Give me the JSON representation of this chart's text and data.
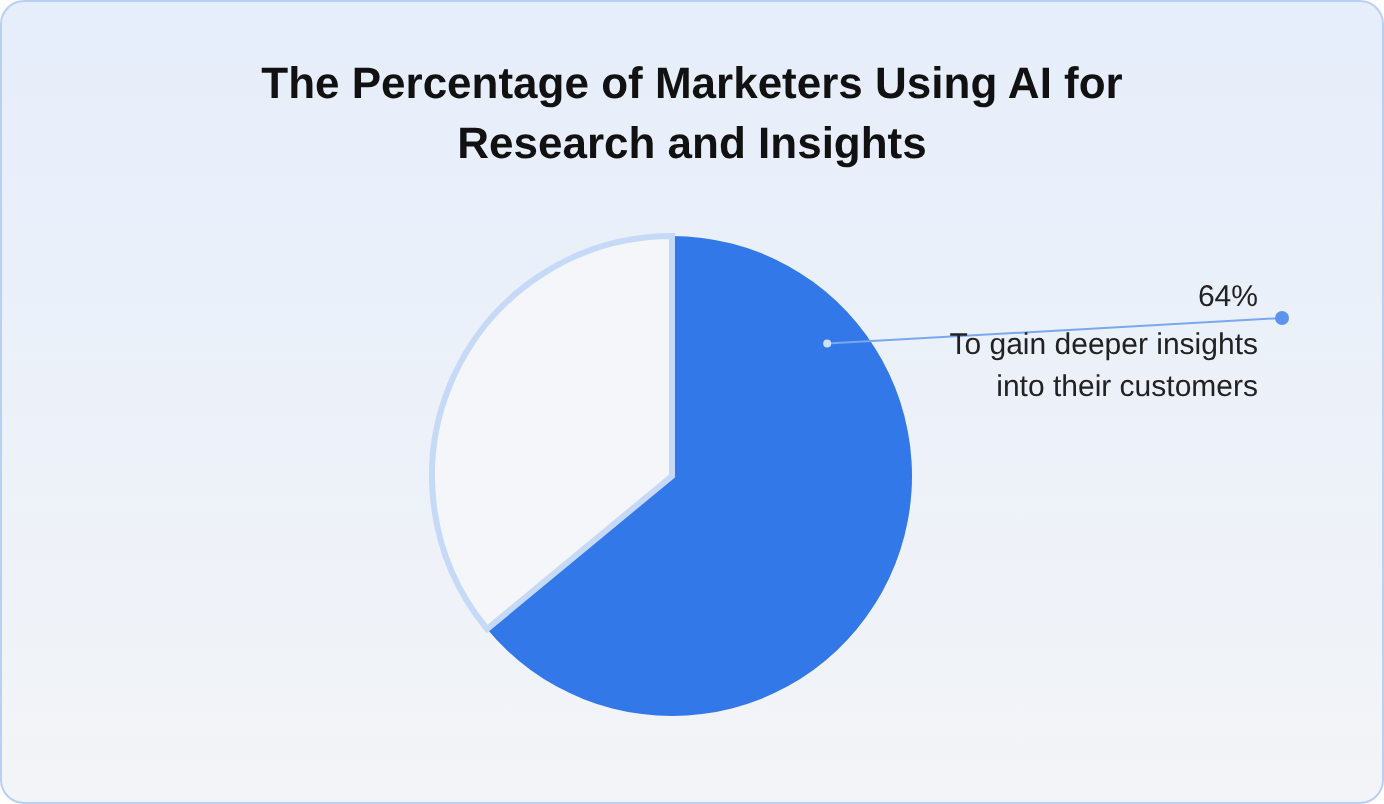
{
  "chart_data": {
    "type": "pie",
    "title": "The Percentage of Marketers Using AI for Research and Insights",
    "categories": [
      "To gain deeper insights into their customers",
      null
    ],
    "values": [
      64,
      36
    ],
    "colors": [
      "#3278e8",
      "#f4f6fa"
    ],
    "value_labels": [
      "64%",
      null
    ]
  }
}
